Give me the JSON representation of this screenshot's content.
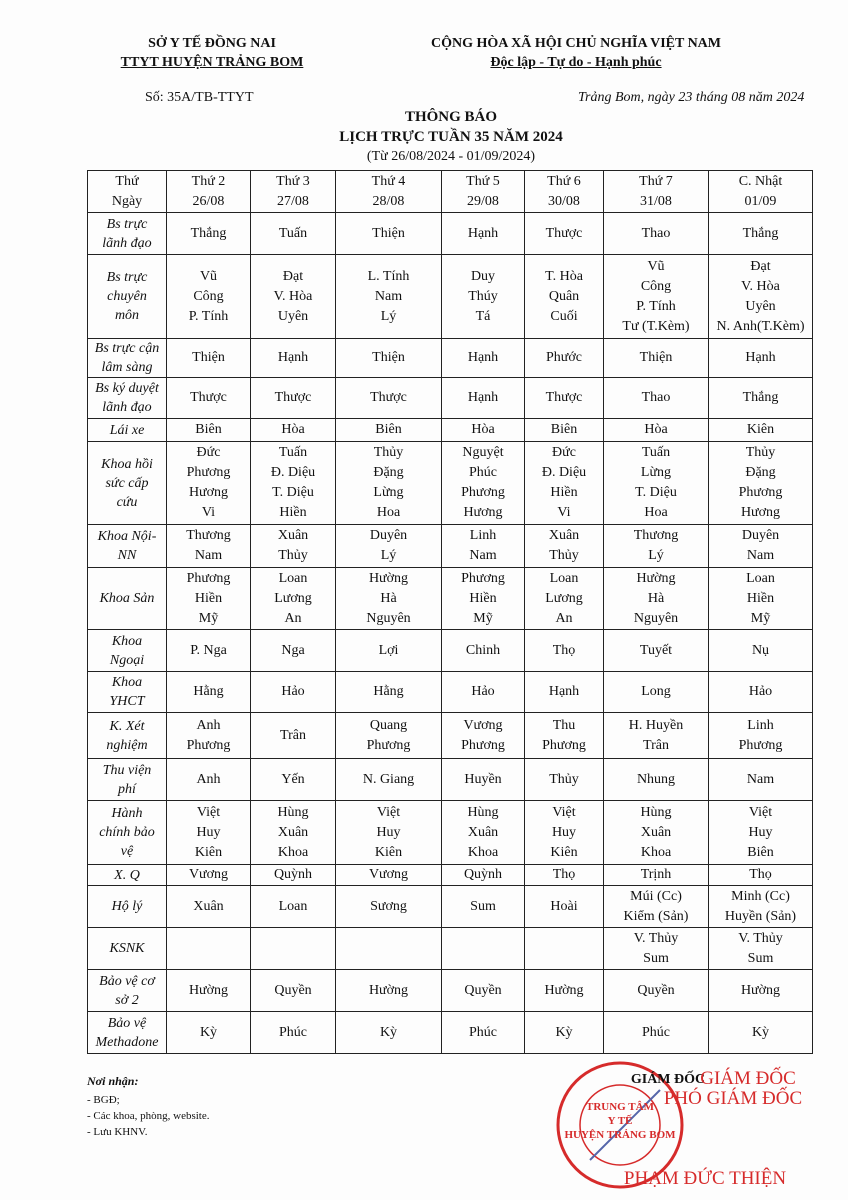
{
  "header": {
    "left": {
      "org": "SỞ Y TẾ ĐỒNG NAI",
      "unit": "TTYT HUYỆN TRẢNG BOM",
      "number": "Số: 35A/TB-TTYT"
    },
    "right": {
      "nation": "CỘNG HÒA XÃ HỘI CHỦ NGHĨA VIỆT NAM",
      "motto": "Độc lập - Tự do - Hạnh phúc",
      "date": "Trảng Bom, ngày 23 tháng 08 năm 2024"
    },
    "title": "THÔNG BÁO",
    "subtitle": "LỊCH TRỰC TUẦN 35 NĂM 2024",
    "period": "(Từ 26/08/2024 - 01/09/2024)"
  },
  "table": {
    "header": {
      "label": [
        "Thứ",
        "Ngày"
      ],
      "cells": [
        [
          "Thứ 2",
          "26/08"
        ],
        [
          "Thứ 3",
          "27/08"
        ],
        [
          "Thứ 4",
          "28/08"
        ],
        [
          "Thứ 5",
          "29/08"
        ],
        [
          "Thứ 6",
          "30/08"
        ],
        [
          "Thứ 7",
          "31/08"
        ],
        [
          "C. Nhật",
          "01/09"
        ]
      ]
    },
    "rows": [
      {
        "label": [
          "Bs trực",
          "lãnh đạo"
        ],
        "cells": [
          [
            "Thắng"
          ],
          [
            "Tuấn"
          ],
          [
            "Thiện"
          ],
          [
            "Hạnh"
          ],
          [
            "Thược"
          ],
          [
            "Thao"
          ],
          [
            "Thắng"
          ]
        ]
      },
      {
        "label": [
          "Bs trực",
          "chuyên",
          "môn"
        ],
        "cells": [
          [
            "Vũ",
            "Công",
            "P. Tính"
          ],
          [
            "Đạt",
            "V. Hòa",
            "Uyên"
          ],
          [
            "L. Tính",
            "Nam",
            "Lý"
          ],
          [
            "Duy",
            "Thúy",
            "Tá"
          ],
          [
            "T. Hòa",
            "Quân",
            "Cuối"
          ],
          [
            "Vũ",
            "Công",
            "P. Tính",
            "Tư (T.Kèm)"
          ],
          [
            "Đạt",
            "V. Hòa",
            "Uyên",
            "N. Anh(T.Kèm)"
          ]
        ]
      },
      {
        "label": [
          "Bs trực cận",
          "lâm sàng"
        ],
        "cells": [
          [
            "Thiện"
          ],
          [
            "Hạnh"
          ],
          [
            "Thiện"
          ],
          [
            "Hạnh"
          ],
          [
            "Phước"
          ],
          [
            "Thiện"
          ],
          [
            "Hạnh"
          ]
        ]
      },
      {
        "label": [
          "Bs ký duyệt",
          "lãnh đạo"
        ],
        "cells": [
          [
            "Thược"
          ],
          [
            "Thược"
          ],
          [
            "Thược"
          ],
          [
            "Hạnh"
          ],
          [
            "Thược"
          ],
          [
            "Thao"
          ],
          [
            "Thắng"
          ]
        ]
      },
      {
        "label": [
          "Lái xe"
        ],
        "cells": [
          [
            "Biên"
          ],
          [
            "Hòa"
          ],
          [
            "Biên"
          ],
          [
            "Hòa"
          ],
          [
            "Biên"
          ],
          [
            "Hòa"
          ],
          [
            "Kiên"
          ]
        ]
      },
      {
        "label": [
          "Khoa hồi",
          "sức cấp",
          "cứu"
        ],
        "cells": [
          [
            "Đức",
            "Phương",
            "Hương",
            "Vi"
          ],
          [
            "Tuấn",
            "Đ. Diệu",
            "T. Diệu",
            "Hiền"
          ],
          [
            "Thủy",
            "Đặng",
            "Lừng",
            "Hoa"
          ],
          [
            "Nguyệt",
            "Phúc",
            "Phương",
            "Hương"
          ],
          [
            "Đức",
            "Đ. Diệu",
            "Hiền",
            "Vi"
          ],
          [
            "Tuấn",
            "Lừng",
            "T. Diệu",
            "Hoa"
          ],
          [
            "Thủy",
            "Đặng",
            "Phương",
            "Hương"
          ]
        ]
      },
      {
        "label": [
          "Khoa Nội-",
          "NN"
        ],
        "cells": [
          [
            "Thương",
            "Nam"
          ],
          [
            "Xuân",
            "Thủy"
          ],
          [
            "Duyên",
            "Lý"
          ],
          [
            "Linh",
            "Nam"
          ],
          [
            "Xuân",
            "Thủy"
          ],
          [
            "Thương",
            "Lý"
          ],
          [
            "Duyên",
            "Nam"
          ]
        ]
      },
      {
        "label": [
          "Khoa Sản"
        ],
        "cells": [
          [
            "Phương",
            "Hiền",
            "Mỹ"
          ],
          [
            "Loan",
            "Lương",
            "An"
          ],
          [
            "Hường",
            "Hà",
            "Nguyên"
          ],
          [
            "Phương",
            "Hiền",
            "Mỹ"
          ],
          [
            "Loan",
            "Lương",
            "An"
          ],
          [
            "Hường",
            "Hà",
            "Nguyên"
          ],
          [
            "Loan",
            "Hiền",
            "Mỹ"
          ]
        ]
      },
      {
        "label": [
          "Khoa",
          "Ngoại"
        ],
        "cells": [
          [
            "P. Nga"
          ],
          [
            "Nga"
          ],
          [
            "Lợi"
          ],
          [
            "Chinh"
          ],
          [
            "Thọ"
          ],
          [
            "Tuyết"
          ],
          [
            "Nụ"
          ]
        ]
      },
      {
        "label": [
          "Khoa",
          "YHCT"
        ],
        "cells": [
          [
            "Hằng"
          ],
          [
            "Hảo"
          ],
          [
            "Hằng"
          ],
          [
            "Hảo"
          ],
          [
            "Hạnh"
          ],
          [
            "Long"
          ],
          [
            "Hảo"
          ]
        ]
      },
      {
        "label": [
          "K. Xét",
          "nghiệm"
        ],
        "cells": [
          [
            "Anh",
            "Phương"
          ],
          [
            "Trân"
          ],
          [
            "Quang",
            "Phương"
          ],
          [
            "Vương",
            "Phương"
          ],
          [
            "Thu",
            "Phương"
          ],
          [
            "H. Huyền",
            "Trân"
          ],
          [
            "Linh",
            "Phương"
          ]
        ]
      },
      {
        "label": [
          "Thu viện",
          "phí"
        ],
        "cells": [
          [
            "Anh"
          ],
          [
            "Yến"
          ],
          [
            "N. Giang"
          ],
          [
            "Huyền"
          ],
          [
            "Thủy"
          ],
          [
            "Nhung"
          ],
          [
            "Nam"
          ]
        ]
      },
      {
        "label": [
          "Hành",
          "chính bảo",
          "vệ"
        ],
        "cells": [
          [
            "Việt",
            "Huy",
            "Kiên"
          ],
          [
            "Hùng",
            "Xuân",
            "Khoa"
          ],
          [
            "Việt",
            "Huy",
            "Kiên"
          ],
          [
            "Hùng",
            "Xuân",
            "Khoa"
          ],
          [
            "Việt",
            "Huy",
            "Kiên"
          ],
          [
            "Hùng",
            "Xuân",
            "Khoa"
          ],
          [
            "Việt",
            "Huy",
            "Biên"
          ]
        ]
      },
      {
        "label": [
          "X. Q"
        ],
        "cells": [
          [
            "Vương"
          ],
          [
            "Quỳnh"
          ],
          [
            "Vương"
          ],
          [
            "Quỳnh"
          ],
          [
            "Thọ"
          ],
          [
            "Trịnh"
          ],
          [
            "Thọ"
          ]
        ]
      },
      {
        "label": [
          "Hộ lý"
        ],
        "cells": [
          [
            "Xuân"
          ],
          [
            "Loan"
          ],
          [
            "Sương"
          ],
          [
            "Sum"
          ],
          [
            "Hoài"
          ],
          [
            "Múi (Cc)",
            "Kiểm (Sản)"
          ],
          [
            "Minh (Cc)",
            "Huyền (Sản)"
          ]
        ]
      },
      {
        "label": [
          "KSNK"
        ],
        "cells": [
          [],
          [],
          [],
          [],
          [],
          [
            "V. Thủy",
            "Sum"
          ],
          [
            "V. Thủy",
            "Sum"
          ]
        ]
      },
      {
        "label": [
          "Bảo vệ cơ",
          "sở 2"
        ],
        "cells": [
          [
            "Hường"
          ],
          [
            "Quyền"
          ],
          [
            "Hường"
          ],
          [
            "Quyền"
          ],
          [
            "Hường"
          ],
          [
            "Quyền"
          ],
          [
            "Hường"
          ]
        ]
      },
      {
        "label": [
          "Bảo vệ",
          "Methadone"
        ],
        "cells": [
          [
            "Kỳ"
          ],
          [
            "Phúc"
          ],
          [
            "Kỳ"
          ],
          [
            "Phúc"
          ],
          [
            "Kỳ"
          ],
          [
            "Phúc"
          ],
          [
            "Kỳ"
          ]
        ]
      }
    ]
  },
  "footer": {
    "recipients_title": "Nơi nhận:",
    "recipients": [
      "- BGĐ;",
      "- Các khoa, phòng, website.",
      "- Lưu KHNV."
    ],
    "signature": {
      "title": "GIÁM ĐỐC",
      "stamp_title": [
        "GIÁM ĐỐC",
        "PHÓ GIÁM ĐỐC"
      ],
      "stamp": [
        "TRUNG TÂM",
        "Y TẾ",
        "HUYỆN TRẢNG BOM"
      ],
      "name": "PHẠM ĐỨC THIỆN"
    }
  }
}
